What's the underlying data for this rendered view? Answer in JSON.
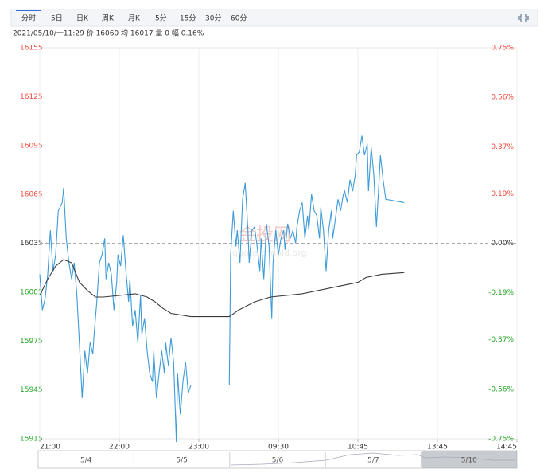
{
  "toolbar": {
    "tabs": [
      "分时",
      "5日",
      "日K",
      "周K",
      "月K",
      "5分",
      "15分",
      "30分",
      "60分"
    ]
  },
  "info": "2021/05/10/一11:29  价 16060  均 16017  量 0  幅 0.16%",
  "watermark": {
    "logo": "金投网",
    "site": "quote.cngold.org"
  },
  "navigator": {
    "dates": [
      "5/4",
      "5/5",
      "5/6",
      "5/7",
      "5/10"
    ]
  },
  "chart_data": {
    "type": "line",
    "xlim": [
      0,
      360
    ],
    "xticks": [
      {
        "value": 0,
        "label": "21:00"
      },
      {
        "value": 60,
        "label": "22:00"
      },
      {
        "value": 120,
        "label": "23:00"
      },
      {
        "value": 180,
        "label": "09:30"
      },
      {
        "value": 240,
        "label": "10:45"
      },
      {
        "value": 300,
        "label": "13:45"
      },
      {
        "value": 360,
        "label": "14:45"
      }
    ],
    "ylim": [
      15915,
      16155
    ],
    "yticks": [
      16155,
      16125,
      16095,
      16065,
      16035,
      16005,
      15975,
      15945,
      15915
    ],
    "y2lim": [
      -0.75,
      0.75
    ],
    "y2ticks": [
      {
        "value": 0.75,
        "label": "0.75%"
      },
      {
        "value": 0.56,
        "label": "0.56%"
      },
      {
        "value": 0.37,
        "label": "0.37%"
      },
      {
        "value": 0.19,
        "label": "0.19%"
      },
      {
        "value": 0,
        "label": "0.00%"
      },
      {
        "value": -0.19,
        "label": "-0.19%"
      },
      {
        "value": -0.37,
        "label": "-0.37%"
      },
      {
        "value": -0.56,
        "label": "-0.56%"
      },
      {
        "value": -0.75,
        "label": "-0.75%"
      }
    ],
    "baseline": 16035,
    "up_color": "#f04a3c",
    "down_color": "#22a722",
    "grid": true,
    "series": [
      {
        "color": "#3d9bd8",
        "x": [
          0,
          2,
          4,
          6,
          8,
          10,
          12,
          14,
          17,
          18,
          20,
          22,
          24,
          26,
          28,
          30,
          32,
          34,
          36,
          38,
          40,
          41,
          43,
          45,
          47,
          49,
          50,
          52,
          54,
          56,
          58,
          59,
          61,
          63,
          65,
          67,
          68,
          70,
          72,
          74,
          76,
          77,
          79,
          81,
          83,
          85,
          86,
          88,
          90,
          92,
          94,
          95,
          97,
          99,
          101,
          103,
          104,
          106,
          108,
          110,
          112,
          114,
          143,
          144,
          146,
          148,
          149,
          151,
          153,
          155,
          157,
          158,
          160,
          162,
          164,
          166,
          167,
          169,
          171,
          173,
          175,
          176,
          178,
          180,
          182,
          184,
          185,
          187,
          189,
          191,
          193,
          194,
          196,
          198,
          200,
          202,
          203,
          205,
          207,
          209,
          211,
          212,
          214,
          216,
          218,
          220,
          221,
          223,
          225,
          227,
          229,
          230,
          232,
          234,
          236,
          238,
          239,
          241,
          243,
          245,
          247,
          248,
          250,
          252,
          254,
          256,
          257,
          259,
          261,
          275
        ],
        "values": [
          16016,
          15994,
          16001,
          16016,
          16043,
          16018,
          16028,
          16055,
          16060,
          16069,
          16038,
          16023,
          16013,
          16023,
          16003,
          15972,
          15940,
          15969,
          15955,
          15974,
          15967,
          15979,
          15999,
          16023,
          16028,
          16038,
          16013,
          16023,
          16016,
          15994,
          16011,
          16028,
          16021,
          16040,
          16018,
          15999,
          16013,
          15984,
          15994,
          15974,
          16003,
          15979,
          15989,
          15969,
          15955,
          15950,
          15969,
          15940,
          15955,
          15969,
          15955,
          15974,
          15960,
          15977,
          15962,
          15913,
          15955,
          15930,
          15950,
          15962,
          15943,
          15948,
          15948,
          16028,
          16055,
          16033,
          16043,
          16023,
          16062,
          16072,
          16043,
          16023,
          16043,
          16045,
          16033,
          16018,
          16038,
          16013,
          16047,
          16033,
          15989,
          16023,
          16043,
          16028,
          16038,
          16043,
          16031,
          16047,
          16038,
          16043,
          16035,
          16045,
          16055,
          16060,
          16038,
          16052,
          16043,
          16065,
          16055,
          16052,
          16038,
          16057,
          16043,
          16018,
          16043,
          16055,
          16038,
          16050,
          16062,
          16055,
          16065,
          16067,
          16060,
          16074,
          16067,
          16077,
          16089,
          16091,
          16101,
          16089,
          16096,
          16067,
          16094,
          16077,
          16045,
          16074,
          16089,
          16074,
          16062,
          16060
        ]
      },
      {
        "color": "#3a3a3a",
        "x": [
          0,
          6,
          12,
          18,
          24,
          30,
          36,
          42,
          48,
          60,
          72,
          81,
          87,
          93,
          99,
          114,
          143,
          150,
          162,
          174,
          198,
          222,
          240,
          246,
          258,
          275
        ],
        "values": [
          16003,
          16013,
          16021,
          16025,
          16023,
          16011,
          16006,
          16002,
          16002,
          16003,
          16004,
          16002,
          15999,
          15995,
          15992,
          15990,
          15990,
          15994,
          15999,
          16002,
          16004,
          16008,
          16011,
          16014,
          16016,
          16017
        ]
      }
    ]
  }
}
